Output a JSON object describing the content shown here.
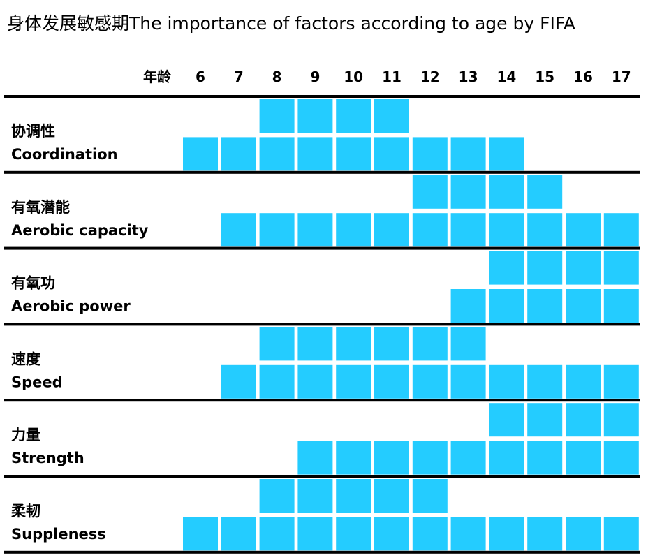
{
  "chart_data": {
    "type": "heatmap",
    "title": "身体发展敏感期The importance of factors according to age by FIFA",
    "age_label": "年龄",
    "ages": [
      6,
      7,
      8,
      9,
      10,
      11,
      12,
      13,
      14,
      15,
      16,
      17
    ],
    "cell_color": "#24CCFF",
    "rule_color": "#000000",
    "factors": [
      {
        "label_zh": "协调性",
        "label_en": "Coordination",
        "top_ages": [
          8,
          9,
          10,
          11
        ],
        "bottom_ages": [
          6,
          7,
          8,
          9,
          10,
          11,
          12,
          13,
          14
        ]
      },
      {
        "label_zh": "有氧潜能",
        "label_en": "Aerobic capacity",
        "top_ages": [
          12,
          13,
          14,
          15
        ],
        "bottom_ages": [
          7,
          8,
          9,
          10,
          11,
          12,
          13,
          14,
          15,
          16,
          17
        ]
      },
      {
        "label_zh": "有氧功",
        "label_en": "Aerobic power",
        "top_ages": [
          14,
          15,
          16,
          17
        ],
        "bottom_ages": [
          13,
          14,
          15,
          16,
          17
        ]
      },
      {
        "label_zh": "速度",
        "label_en": "Speed",
        "top_ages": [
          8,
          9,
          10,
          11,
          12,
          13
        ],
        "bottom_ages": [
          7,
          8,
          9,
          10,
          11,
          12,
          13,
          14,
          15,
          16,
          17
        ]
      },
      {
        "label_zh": "力量",
        "label_en": "Strength",
        "top_ages": [
          14,
          15,
          16,
          17
        ],
        "bottom_ages": [
          9,
          10,
          11,
          12,
          13,
          14,
          15,
          16,
          17
        ]
      },
      {
        "label_zh": "柔韧",
        "label_en": "Suppleness",
        "top_ages": [
          8,
          9,
          10,
          11,
          12
        ],
        "bottom_ages": [
          6,
          7,
          8,
          9,
          10,
          11,
          12,
          13,
          14,
          15,
          16,
          17
        ]
      }
    ]
  }
}
